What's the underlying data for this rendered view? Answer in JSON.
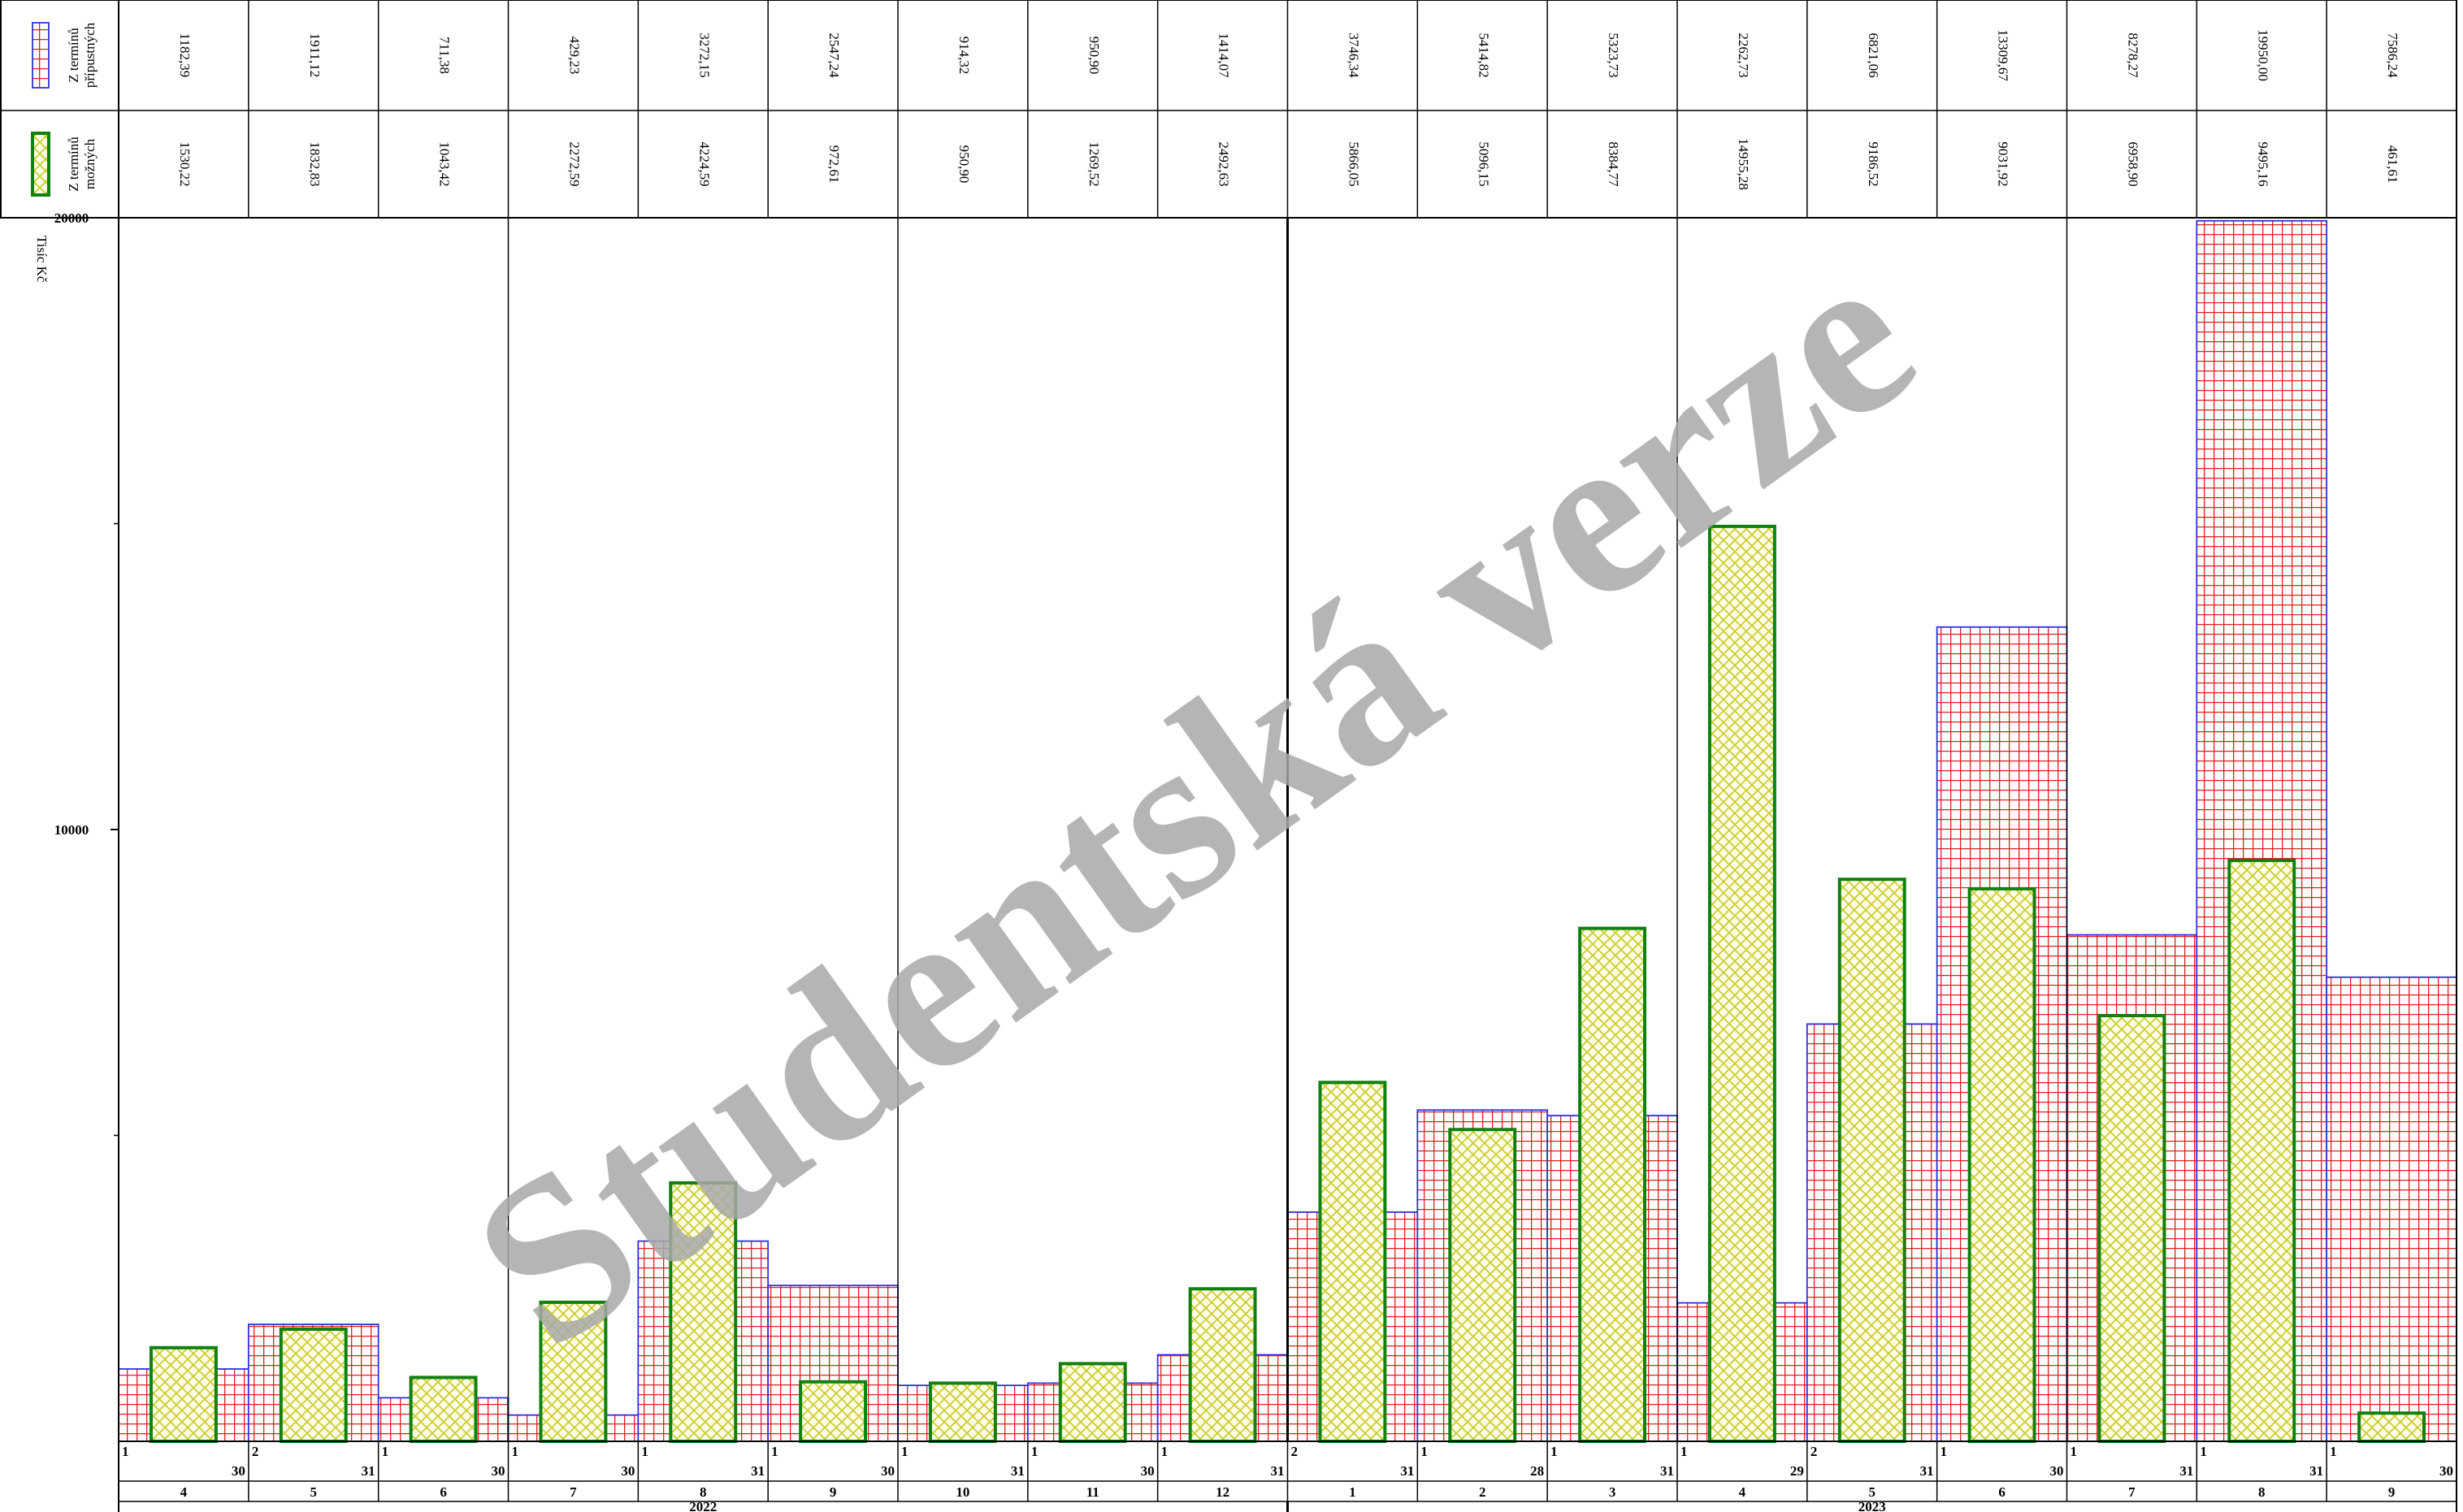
{
  "chart_data": {
    "type": "bar",
    "y_label": "Tisíc Kč",
    "watermark": "Studentská verze",
    "categories": [
      "4",
      "5",
      "6",
      "7",
      "8",
      "9",
      "10",
      "11",
      "12",
      "1",
      "2",
      "3",
      "4",
      "5",
      "6",
      "7",
      "8",
      "9"
    ],
    "category_years": [
      2022,
      2022,
      2022,
      2022,
      2022,
      2022,
      2022,
      2022,
      2022,
      2023,
      2023,
      2023,
      2023,
      2023,
      2023,
      2023,
      2023,
      2023
    ],
    "period_start_days": [
      1,
      2,
      1,
      1,
      1,
      1,
      1,
      1,
      1,
      2,
      1,
      1,
      1,
      2,
      1,
      1,
      1,
      1
    ],
    "period_end_days": [
      30,
      31,
      30,
      30,
      31,
      30,
      31,
      30,
      31,
      31,
      28,
      31,
      29,
      31,
      30,
      31,
      31,
      30
    ],
    "series": [
      {
        "name": "Z termínů přípustných",
        "color": "#e02020",
        "outline": "#3030e0",
        "values": [
          1182.39,
          1911.12,
          711.38,
          429.23,
          3272.15,
          2547.24,
          914.32,
          950.9,
          1414.07,
          3746.34,
          5414.82,
          5323.73,
          2262.73,
          6821.06,
          13309.67,
          8278.27,
          19950.0,
          7586.24
        ],
        "value_labels": [
          "1182,39",
          "1911,12",
          "711,38",
          "429,23",
          "3272,15",
          "2547,24",
          "914,32",
          "950,90",
          "1414,07",
          "3746,34",
          "5414,82",
          "5323,73",
          "2262,73",
          "6821,06",
          "13309,67",
          "8278,27",
          "19950,00",
          "7586,24"
        ]
      },
      {
        "name": "Z termínů možných",
        "color": "#cccc30",
        "outline": "#108010",
        "values": [
          1530.22,
          1832.83,
          1043.42,
          2272.59,
          4224.59,
          972.61,
          950.9,
          1269.52,
          2492.63,
          5866.05,
          5096.15,
          8384.77,
          14955.28,
          9186.52,
          9031.92,
          6958.9,
          9495.16,
          461.61
        ],
        "value_labels": [
          "1530,22",
          "1832,83",
          "1043,42",
          "2272,59",
          "4224,59",
          "972,61",
          "950,90",
          "1269,52",
          "2492,63",
          "5866,05",
          "5096,15",
          "8384,77",
          "14955,28",
          "9186,52",
          "9031,92",
          "6958,90",
          "9495,16",
          "461,61"
        ]
      }
    ],
    "ylim": [
      0,
      20000
    ],
    "yticks": [
      10000,
      20000
    ],
    "minor_yticks": [
      5000,
      15000
    ]
  }
}
